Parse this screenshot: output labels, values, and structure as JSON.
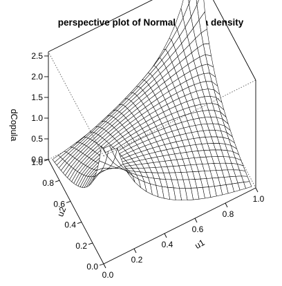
{
  "chart_data": {
    "type": "surface",
    "title": "perspective plot of Normal copula density",
    "xlabel": "u1",
    "ylabel": "u2",
    "zlabel": "dCopula",
    "xlim": [
      0,
      1
    ],
    "ylim": [
      0,
      1
    ],
    "zlim": [
      0,
      2.6
    ],
    "x_ticks": [
      "0.0",
      "0.2",
      "0.4",
      "0.6",
      "0.8",
      "1.0"
    ],
    "y_ticks": [
      "0.0",
      "0.2",
      "0.4",
      "0.6",
      "0.8",
      "1.0"
    ],
    "z_ticks": [
      "0.0",
      "0.5",
      "1.0",
      "1.5",
      "2.0",
      "2.5"
    ],
    "copula_rho": 0.5,
    "grid_size": 26,
    "grid_range": [
      0.02,
      0.98
    ]
  }
}
